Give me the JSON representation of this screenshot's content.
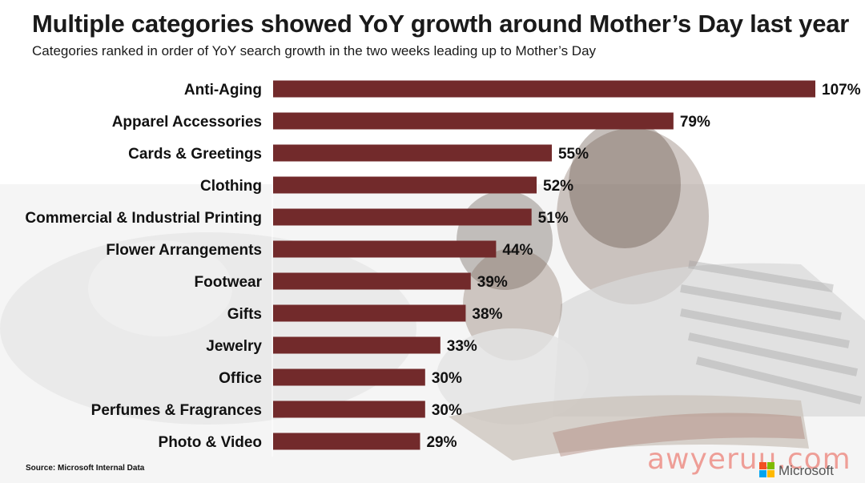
{
  "title": "Multiple categories showed YoY growth around Mother’s Day last year",
  "subtitle": "Categories ranked in order of YoY search growth in the two weeks leading up to Mother’s Day",
  "source": "Source: Microsoft Internal Data",
  "watermark": "awyeruu.com",
  "brand": "Microsoft",
  "colors": {
    "bar": "#722a2b",
    "logo": [
      "#f25022",
      "#7fba00",
      "#00a4ef",
      "#ffb900"
    ]
  },
  "chart_data": {
    "type": "bar",
    "orientation": "horizontal",
    "categories": [
      "Anti-Aging",
      "Apparel Accessories",
      "Cards & Greetings",
      "Clothing",
      "Commercial & Industrial Printing",
      "Flower Arrangements",
      "Footwear",
      "Gifts",
      "Jewelry",
      "Office",
      "Perfumes & Fragrances",
      "Photo & Video"
    ],
    "values": [
      107,
      79,
      55,
      52,
      51,
      44,
      39,
      38,
      33,
      30,
      30,
      29
    ],
    "value_labels": [
      "107%",
      "79%",
      "55%",
      "52%",
      "51%",
      "44%",
      "39%",
      "38%",
      "33%",
      "30%",
      "30%",
      "29%"
    ],
    "unit": "%",
    "grid": false,
    "legend": "none"
  }
}
